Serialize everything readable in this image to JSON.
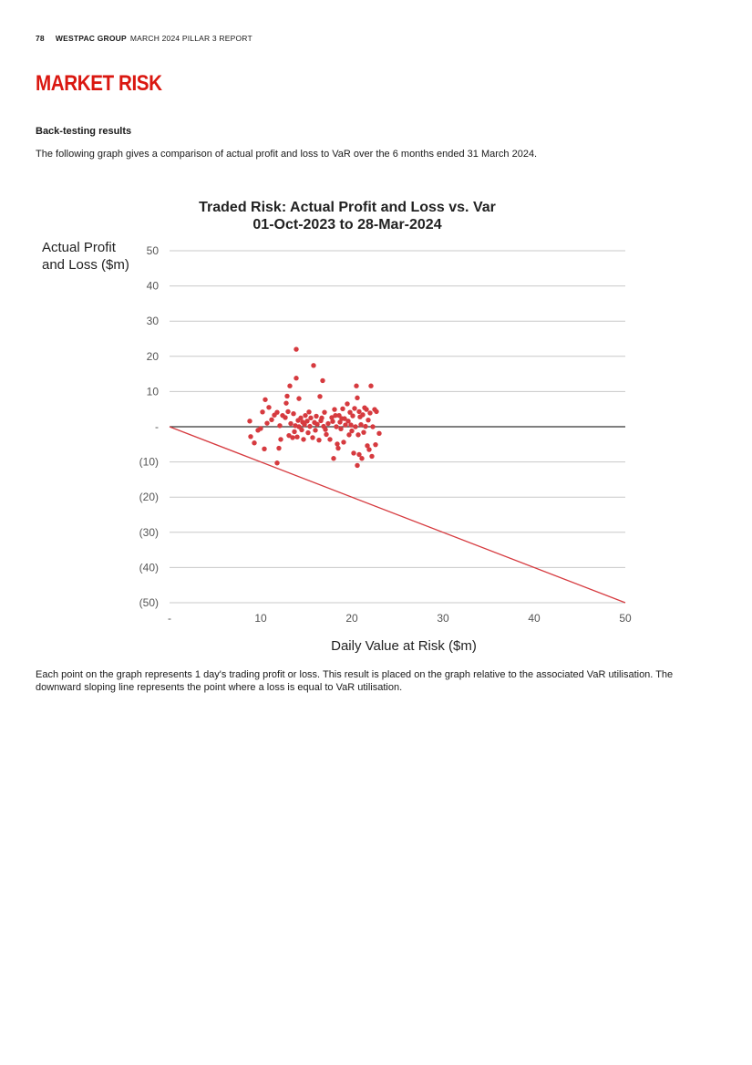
{
  "header": {
    "page_number": "78",
    "company": "WESTPAC GROUP",
    "report": "MARCH 2024 PILLAR 3 REPORT"
  },
  "section_title": "MARKET RISK",
  "subheading": "Back-testing results",
  "intro": "The following graph gives a comparison of actual profit and loss to VaR over the 6 months ended 31 March 2024.",
  "caption": "Each point on the graph represents 1 day's trading profit or loss. This result is placed on the graph relative to the associated VaR utilisation. The downward sloping line represents the point where a loss is equal to VaR utilisation.",
  "colors": {
    "accent": "#da1710",
    "points": "#d63a3f",
    "line": "#d63a3f",
    "zero_line": "#333333",
    "grid": "#c8c8c8"
  },
  "chart_data": {
    "type": "scatter",
    "title": "Traded Risk: Actual Profit and Loss vs. Var",
    "subtitle": "01-Oct-2023 to 28-Mar-2024",
    "xlabel": "Daily Value at Risk ($m)",
    "ylabel_lines": [
      "Actual Profit",
      "and Loss ($m)"
    ],
    "xlim": [
      0,
      50
    ],
    "ylim": [
      -50,
      50
    ],
    "x_ticks": [
      0,
      10,
      20,
      30,
      40,
      50
    ],
    "x_tick_labels": [
      "-",
      "10",
      "20",
      "30",
      "40",
      "50"
    ],
    "y_ticks": [
      50,
      40,
      30,
      20,
      10,
      0,
      -10,
      -20,
      -30,
      -40,
      -50
    ],
    "y_tick_labels": [
      "50",
      "40",
      "30",
      "20",
      "10",
      "-",
      "(10)",
      "(20)",
      "(30)",
      "(40)",
      "(50)"
    ],
    "grid": true,
    "reference_line": {
      "name": "Loss equals VaR",
      "x": [
        0,
        50
      ],
      "y": [
        0,
        -50
      ]
    },
    "series": [
      {
        "points": [
          [
            8.8,
            1.6
          ],
          [
            8.9,
            -2.8
          ],
          [
            9.3,
            -4.6
          ],
          [
            9.7,
            -1.0
          ],
          [
            10.0,
            -0.5
          ],
          [
            10.2,
            4.2
          ],
          [
            10.4,
            -6.3
          ],
          [
            10.5,
            7.7
          ],
          [
            10.7,
            1.0
          ],
          [
            10.9,
            5.5
          ],
          [
            11.2,
            2.0
          ],
          [
            11.5,
            3.3
          ],
          [
            11.8,
            -10.3
          ],
          [
            11.8,
            4.1
          ],
          [
            12.0,
            -6.1
          ],
          [
            12.1,
            0.3
          ],
          [
            12.2,
            -3.6
          ],
          [
            12.4,
            3.2
          ],
          [
            12.7,
            2.6
          ],
          [
            12.8,
            6.7
          ],
          [
            12.9,
            8.7
          ],
          [
            13.0,
            4.3
          ],
          [
            13.1,
            -2.5
          ],
          [
            13.2,
            11.6
          ],
          [
            13.3,
            0.9
          ],
          [
            13.5,
            -3.1
          ],
          [
            13.6,
            3.7
          ],
          [
            13.7,
            -1.4
          ],
          [
            13.8,
            0.3
          ],
          [
            13.9,
            13.8
          ],
          [
            13.9,
            22.0
          ],
          [
            14.0,
            -2.9
          ],
          [
            14.1,
            1.8
          ],
          [
            14.2,
            8.0
          ],
          [
            14.2,
            0.0
          ],
          [
            14.4,
            2.5
          ],
          [
            14.5,
            -0.9
          ],
          [
            14.6,
            1.3
          ],
          [
            14.7,
            -3.6
          ],
          [
            14.8,
            0.6
          ],
          [
            14.9,
            3.2
          ],
          [
            15.1,
            1.6
          ],
          [
            15.2,
            -1.7
          ],
          [
            15.3,
            4.2
          ],
          [
            15.4,
            0.1
          ],
          [
            15.5,
            2.5
          ],
          [
            15.7,
            -3.1
          ],
          [
            15.8,
            17.4
          ],
          [
            15.9,
            1.2
          ],
          [
            16.0,
            -1.0
          ],
          [
            16.1,
            3.0
          ],
          [
            16.2,
            0.7
          ],
          [
            16.4,
            -3.8
          ],
          [
            16.5,
            8.6
          ],
          [
            16.6,
            1.7
          ],
          [
            16.7,
            2.5
          ],
          [
            16.8,
            13.1
          ],
          [
            16.9,
            0.1
          ],
          [
            17.0,
            4.1
          ],
          [
            17.1,
            -0.8
          ],
          [
            17.2,
            -2.2
          ],
          [
            17.4,
            0.9
          ],
          [
            17.6,
            -3.6
          ],
          [
            17.8,
            2.6
          ],
          [
            17.9,
            1.5
          ],
          [
            18.0,
            -9.0
          ],
          [
            18.1,
            4.9
          ],
          [
            18.2,
            3.2
          ],
          [
            18.3,
            0.0
          ],
          [
            18.4,
            -4.9
          ],
          [
            18.5,
            -6.1
          ],
          [
            18.6,
            3.2
          ],
          [
            18.7,
            1.3
          ],
          [
            18.8,
            -0.6
          ],
          [
            18.9,
            2.3
          ],
          [
            19.0,
            5.1
          ],
          [
            19.1,
            -4.4
          ],
          [
            19.2,
            2.3
          ],
          [
            19.3,
            0.5
          ],
          [
            19.5,
            6.5
          ],
          [
            19.6,
            1.6
          ],
          [
            19.7,
            -2.3
          ],
          [
            19.8,
            4.1
          ],
          [
            19.9,
            0.5
          ],
          [
            20.0,
            -1.2
          ],
          [
            20.1,
            3.1
          ],
          [
            20.2,
            -7.5
          ],
          [
            20.3,
            5.2
          ],
          [
            20.4,
            0.0
          ],
          [
            20.5,
            11.6
          ],
          [
            20.6,
            -11.0
          ],
          [
            20.6,
            8.2
          ],
          [
            20.7,
            -2.3
          ],
          [
            20.8,
            4.3
          ],
          [
            20.8,
            -7.9
          ],
          [
            20.9,
            2.8
          ],
          [
            21.0,
            0.6
          ],
          [
            21.1,
            -9.0
          ],
          [
            21.2,
            3.4
          ],
          [
            21.3,
            -1.6
          ],
          [
            21.4,
            5.4
          ],
          [
            21.5,
            0.1
          ],
          [
            21.6,
            4.9
          ],
          [
            21.7,
            -5.4
          ],
          [
            21.8,
            1.9
          ],
          [
            21.9,
            -6.5
          ],
          [
            22.0,
            3.9
          ],
          [
            22.1,
            11.6
          ],
          [
            22.2,
            -8.4
          ],
          [
            22.3,
            0.0
          ],
          [
            22.5,
            4.9
          ],
          [
            22.6,
            -5.1
          ],
          [
            22.7,
            4.3
          ],
          [
            23.0,
            -1.9
          ]
        ]
      }
    ]
  }
}
